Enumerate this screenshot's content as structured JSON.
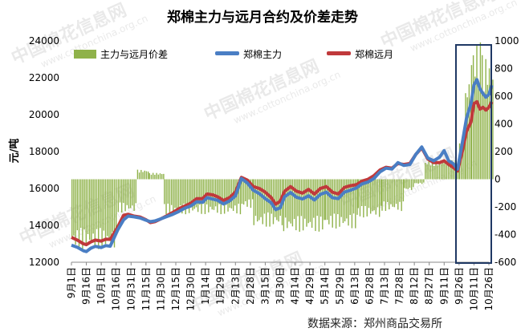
{
  "watermark": {
    "brand": "中国棉花信息网",
    "url": "www.cottonchina.org.cn"
  },
  "chart_data": {
    "type": "bar+line",
    "title": "郑棉主力与远月合约及价差走势",
    "ylabel": "元/吨",
    "y_left": {
      "ticks": [
        12000,
        14000,
        16000,
        18000,
        20000,
        22000,
        24000
      ],
      "lim": [
        12000,
        24000
      ]
    },
    "y_right": {
      "ticks": [
        -600,
        -400,
        -200,
        0,
        200,
        400,
        600,
        800,
        1000
      ],
      "lim": [
        -600,
        1000
      ]
    },
    "x_ticks": [
      "9月1日",
      "9月16日",
      "10月1日",
      "10月16日",
      "10月31日",
      "11月15日",
      "11月30日",
      "12月15日",
      "12月30日",
      "1月14日",
      "1月29日",
      "2月13日",
      "2月28日",
      "3月15日",
      "3月30日",
      "4月14日",
      "4月29日",
      "5月14日",
      "5月29日",
      "6月13日",
      "6月28日",
      "7月13日",
      "7月28日",
      "8月12日",
      "8月27日",
      "9月11日",
      "9月26日",
      "10月11日",
      "10月26日"
    ],
    "legend": [
      "主力与远月价差",
      "郑棉主力",
      "郑棉远月"
    ],
    "legend_position": "top",
    "colors": {
      "spread": "#8fb24a",
      "main": "#4a7ec4",
      "far": "#c0393b",
      "highlight_box": "#1f3864"
    },
    "source": "数据来源：郑州商品交易所",
    "series": [
      {
        "name": "郑棉主力",
        "points": [
          [
            0,
            12920
          ],
          [
            0.4,
            12810
          ],
          [
            0.8,
            12620
          ],
          [
            1.0,
            12580
          ],
          [
            1.3,
            12760
          ],
          [
            1.6,
            12860
          ],
          [
            2.0,
            12800
          ],
          [
            2.3,
            12900
          ],
          [
            2.6,
            12870
          ],
          [
            3.1,
            13750
          ],
          [
            3.5,
            14300
          ],
          [
            3.8,
            14500
          ],
          [
            4.2,
            14460
          ],
          [
            4.6,
            14400
          ],
          [
            5.0,
            14280
          ],
          [
            5.3,
            14200
          ],
          [
            5.6,
            14240
          ],
          [
            6.0,
            14350
          ],
          [
            6.4,
            14480
          ],
          [
            6.8,
            14600
          ],
          [
            7.2,
            14750
          ],
          [
            7.6,
            14930
          ],
          [
            8.0,
            15050
          ],
          [
            8.4,
            15280
          ],
          [
            8.8,
            15250
          ],
          [
            9.1,
            15500
          ],
          [
            9.5,
            15420
          ],
          [
            9.8,
            15360
          ],
          [
            10.2,
            15160
          ],
          [
            10.6,
            15320
          ],
          [
            11.0,
            15600
          ],
          [
            11.4,
            16540
          ],
          [
            11.8,
            16300
          ],
          [
            12.2,
            15900
          ],
          [
            12.6,
            15720
          ],
          [
            13.0,
            15450
          ],
          [
            13.4,
            15220
          ],
          [
            13.7,
            14850
          ],
          [
            14.0,
            14950
          ],
          [
            14.3,
            15550
          ],
          [
            14.7,
            15780
          ],
          [
            15.1,
            15520
          ],
          [
            15.5,
            15430
          ],
          [
            15.9,
            15600
          ],
          [
            16.3,
            15380
          ],
          [
            16.7,
            15680
          ],
          [
            17.1,
            15800
          ],
          [
            17.5,
            15500
          ],
          [
            17.9,
            15450
          ],
          [
            18.3,
            15800
          ],
          [
            18.7,
            15900
          ],
          [
            19.1,
            16020
          ],
          [
            19.5,
            16250
          ],
          [
            19.9,
            16350
          ],
          [
            20.3,
            16550
          ],
          [
            20.7,
            16900
          ],
          [
            21.1,
            17100
          ],
          [
            21.5,
            17050
          ],
          [
            21.9,
            17400
          ],
          [
            22.3,
            17250
          ],
          [
            22.7,
            17300
          ],
          [
            23.1,
            17850
          ],
          [
            23.5,
            18250
          ],
          [
            23.9,
            17650
          ],
          [
            24.3,
            17500
          ],
          [
            24.7,
            17700
          ],
          [
            25.0,
            18050
          ],
          [
            25.3,
            17500
          ],
          [
            25.6,
            17350
          ],
          [
            25.9,
            17050
          ],
          [
            26.2,
            18400
          ],
          [
            26.5,
            19800
          ],
          [
            26.8,
            20600
          ],
          [
            27.0,
            21600
          ],
          [
            27.2,
            21900
          ],
          [
            27.4,
            21400
          ],
          [
            27.6,
            21150
          ],
          [
            27.8,
            20950
          ],
          [
            28.0,
            21100
          ],
          [
            28.2,
            21600
          ]
        ]
      },
      {
        "name": "郑棉远月",
        "points": [
          [
            0,
            13350
          ],
          [
            0.4,
            13200
          ],
          [
            0.8,
            13000
          ],
          [
            1.0,
            12950
          ],
          [
            1.3,
            13100
          ],
          [
            1.6,
            13200
          ],
          [
            2.0,
            13150
          ],
          [
            2.3,
            13250
          ],
          [
            2.6,
            13240
          ],
          [
            3.1,
            13900
          ],
          [
            3.5,
            14550
          ],
          [
            3.8,
            14600
          ],
          [
            4.2,
            14500
          ],
          [
            4.6,
            14450
          ],
          [
            5.0,
            14300
          ],
          [
            5.3,
            14150
          ],
          [
            5.6,
            14200
          ],
          [
            6.0,
            14350
          ],
          [
            6.4,
            14520
          ],
          [
            6.8,
            14700
          ],
          [
            7.2,
            14900
          ],
          [
            7.6,
            15050
          ],
          [
            8.0,
            15200
          ],
          [
            8.4,
            15450
          ],
          [
            8.8,
            15450
          ],
          [
            9.1,
            15700
          ],
          [
            9.5,
            15650
          ],
          [
            9.8,
            15550
          ],
          [
            10.2,
            15350
          ],
          [
            10.6,
            15500
          ],
          [
            11.0,
            15800
          ],
          [
            11.4,
            16600
          ],
          [
            11.8,
            16450
          ],
          [
            12.2,
            16100
          ],
          [
            12.6,
            16000
          ],
          [
            13.0,
            15800
          ],
          [
            13.4,
            15500
          ],
          [
            13.7,
            15150
          ],
          [
            14.0,
            15300
          ],
          [
            14.3,
            15850
          ],
          [
            14.7,
            16100
          ],
          [
            15.1,
            15850
          ],
          [
            15.5,
            15750
          ],
          [
            15.9,
            15950
          ],
          [
            16.3,
            15700
          ],
          [
            16.7,
            16000
          ],
          [
            17.1,
            16100
          ],
          [
            17.5,
            15800
          ],
          [
            17.9,
            15700
          ],
          [
            18.3,
            16050
          ],
          [
            18.7,
            16150
          ],
          [
            19.1,
            16200
          ],
          [
            19.5,
            16400
          ],
          [
            19.9,
            16500
          ],
          [
            20.3,
            16700
          ],
          [
            20.7,
            17000
          ],
          [
            21.1,
            17150
          ],
          [
            21.5,
            17100
          ],
          [
            21.9,
            17350
          ],
          [
            22.3,
            17300
          ],
          [
            22.7,
            17350
          ],
          [
            23.1,
            17850
          ],
          [
            23.5,
            18200
          ],
          [
            23.9,
            17600
          ],
          [
            24.3,
            17400
          ],
          [
            24.7,
            17400
          ],
          [
            25.0,
            17500
          ],
          [
            25.3,
            17300
          ],
          [
            25.6,
            17150
          ],
          [
            25.9,
            16950
          ],
          [
            26.2,
            17950
          ],
          [
            26.5,
            19100
          ],
          [
            26.8,
            19600
          ],
          [
            27.0,
            20600
          ],
          [
            27.2,
            20700
          ],
          [
            27.4,
            20300
          ],
          [
            27.6,
            20400
          ],
          [
            27.8,
            20250
          ],
          [
            28.0,
            20400
          ],
          [
            28.2,
            20700
          ]
        ]
      }
    ],
    "spread_bars": [
      {
        "x_range": [
          0,
          3.0
        ],
        "value": -440
      },
      {
        "x_range": [
          3.1,
          4.4
        ],
        "value": -210
      },
      {
        "x_range": [
          4.4,
          5.2
        ],
        "value": 60
      },
      {
        "x_range": [
          5.2,
          6.2
        ],
        "value": 40
      },
      {
        "x_range": [
          6.2,
          11.4
        ],
        "value": -220
      },
      {
        "x_range": [
          11.4,
          12.2
        ],
        "value": -180
      },
      {
        "x_range": [
          12.2,
          14.2
        ],
        "value": -300
      },
      {
        "x_range": [
          14.2,
          17.0
        ],
        "value": -330
      },
      {
        "x_range": [
          17.0,
          19.2
        ],
        "value": -310
      },
      {
        "x_range": [
          19.2,
          20.8
        ],
        "value": -240
      },
      {
        "x_range": [
          20.8,
          22.3
        ],
        "value": -200
      },
      {
        "x_range": [
          22.3,
          23.0
        ],
        "value": -70
      },
      {
        "x_range": [
          23.0,
          23.7
        ],
        "value": -30
      },
      {
        "x_range": [
          23.7,
          26.0
        ],
        "value": 120
      },
      {
        "x_range": [
          26.0,
          26.4
        ],
        "value": 260
      },
      {
        "x_range": [
          26.4,
          26.8
        ],
        "value": 640
      },
      {
        "x_range": [
          26.8,
          27.4
        ],
        "value": 860
      },
      {
        "x_range": [
          27.4,
          28.3
        ],
        "value": 780
      }
    ]
  }
}
